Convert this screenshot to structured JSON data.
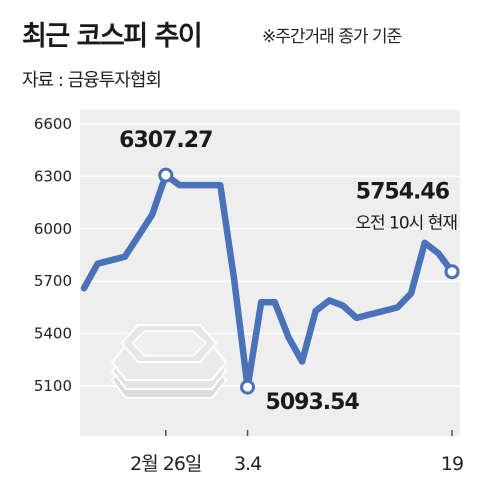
{
  "header": {
    "title": "최근 코스피 추이",
    "note": "※주간거래 종가 기준",
    "source": "자료 : 금융투자협회"
  },
  "colors": {
    "line": "#4a72b8",
    "plot_background": "#eeeeee",
    "grid": "#ffffff",
    "coin_icon": "#dddddd"
  },
  "icon": "coin-stack-icon",
  "chart_data": {
    "type": "line",
    "ylim": [
      5000,
      6600
    ],
    "yticks": [
      5100,
      5400,
      5700,
      6000,
      6300,
      6600
    ],
    "ytick_labels": [
      "5100",
      "5400",
      "5700",
      "6000",
      "6300",
      "6600"
    ],
    "xtick_labels": [
      "2월 26일",
      "3.4",
      "19"
    ],
    "grid": true,
    "series": [
      {
        "values": [
          5660,
          5800,
          5820,
          5840,
          5960,
          6080,
          6307.27,
          6250,
          6250,
          6250,
          6250,
          5720,
          5093.54,
          5580,
          5580,
          5380,
          5240,
          5530,
          5590,
          5560,
          5490,
          5510,
          5530,
          5550,
          5630,
          5920,
          5860,
          5754.46
        ]
      }
    ],
    "annotations": [
      {
        "label": "6307.27",
        "index": 6
      },
      {
        "label": "5093.54",
        "index": 12
      },
      {
        "label": "5754.46",
        "sublabel": "오전 10시 현재",
        "index": 27
      }
    ]
  }
}
